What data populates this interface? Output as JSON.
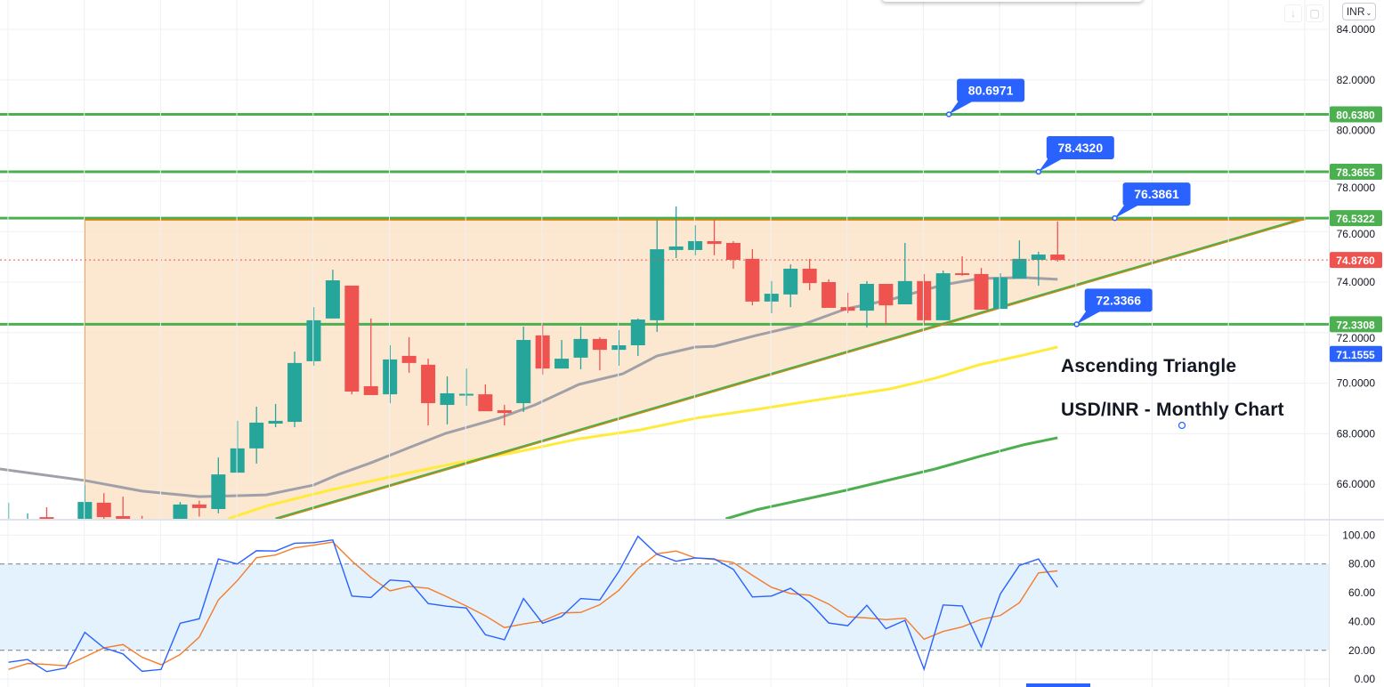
{
  "toolbar": {
    "currency_label": "INR",
    "icons": [
      "download-arrow-icon",
      "fullscreen-icon",
      "chevron-down-icon"
    ]
  },
  "annotations": {
    "title": "Ascending Triangle",
    "subtitle": "USD/INR - Monthly Chart"
  },
  "colors": {
    "up": "#26a69a",
    "down": "#ef5350",
    "level_line": "#4caf50",
    "triangle_fill": "#fce3c8",
    "triangle_edge": "#f57c00",
    "ma_gray": "#a0a0a8",
    "ma_yellow": "#ffeb3b",
    "ma_green": "#4caf50",
    "callout": "#2962ff",
    "rsi": "#2962ff",
    "rsi_signal": "#f57c2a",
    "rsi_band": "#e3f2fd"
  },
  "chart_data": [
    {
      "type": "candlestick",
      "ylim": [
        64.63,
        84.5
      ],
      "grid": true,
      "y_ticks": [
        "84.0000",
        "82.0000",
        "80.0000",
        "78.0000",
        "76.0000",
        "74.0000",
        "72.0000",
        "70.0000",
        "68.0000",
        "66.0000"
      ],
      "candles_ohlc": [
        [
          64.2,
          65.27,
          63.9,
          64.5
        ],
        [
          64.2,
          64.85,
          63.9,
          64.4
        ],
        [
          64.7,
          65.09,
          64.3,
          64.64
        ],
        [
          64.3,
          64.6,
          63.8,
          64.5
        ],
        [
          64.3,
          65.97,
          64.0,
          65.3
        ],
        [
          65.27,
          65.65,
          64.5,
          64.7
        ],
        [
          64.74,
          65.51,
          64.2,
          64.4
        ],
        [
          64.4,
          64.75,
          63.9,
          64.2
        ],
        [
          64.0,
          64.6,
          63.8,
          64.5
        ],
        [
          64.5,
          65.3,
          64.2,
          65.2
        ],
        [
          65.2,
          65.35,
          64.72,
          65.06
        ],
        [
          65.02,
          67.06,
          64.85,
          66.39
        ],
        [
          66.46,
          68.51,
          66.46,
          67.42
        ],
        [
          67.42,
          69.07,
          66.82,
          68.44
        ],
        [
          68.4,
          69.18,
          68.26,
          68.51
        ],
        [
          68.47,
          71.25,
          68.26,
          70.8
        ],
        [
          70.87,
          73.01,
          70.69,
          72.49
        ],
        [
          72.56,
          74.49,
          72.56,
          74.07
        ],
        [
          73.86,
          73.86,
          69.56,
          69.67
        ],
        [
          69.88,
          72.56,
          69.53,
          69.53
        ],
        [
          69.56,
          71.5,
          69.21,
          70.94
        ],
        [
          71.08,
          71.82,
          70.41,
          70.8
        ],
        [
          70.73,
          70.97,
          68.33,
          69.21
        ],
        [
          69.14,
          70.27,
          68.37,
          69.6
        ],
        [
          69.56,
          70.58,
          69.11,
          69.58
        ],
        [
          69.56,
          69.95,
          68.89,
          68.89
        ],
        [
          68.93,
          69.14,
          68.33,
          68.82
        ],
        [
          69.21,
          72.24,
          68.86,
          71.71
        ],
        [
          71.89,
          72.38,
          70.34,
          70.58
        ],
        [
          70.58,
          71.71,
          70.58,
          70.97
        ],
        [
          71.01,
          72.24,
          70.55,
          71.75
        ],
        [
          71.75,
          71.82,
          70.51,
          71.32
        ],
        [
          71.32,
          72.1,
          70.69,
          71.5
        ],
        [
          71.5,
          72.56,
          71.08,
          72.52
        ],
        [
          72.49,
          76.46,
          72.03,
          75.3
        ],
        [
          75.27,
          76.99,
          74.95,
          75.41
        ],
        [
          75.27,
          76.25,
          75.06,
          75.62
        ],
        [
          75.62,
          76.46,
          75.06,
          75.51
        ],
        [
          75.55,
          75.62,
          74.53,
          74.88
        ],
        [
          74.92,
          75.3,
          73.08,
          73.23
        ],
        [
          73.23,
          74.04,
          72.77,
          73.54
        ],
        [
          73.51,
          74.7,
          73.01,
          74.53
        ],
        [
          74.53,
          74.92,
          73.68,
          73.96
        ],
        [
          74.0,
          74.11,
          72.98,
          72.98
        ],
        [
          73.01,
          73.58,
          72.77,
          72.87
        ],
        [
          72.87,
          74.04,
          72.2,
          73.93
        ],
        [
          73.93,
          73.93,
          72.31,
          73.08
        ],
        [
          73.12,
          75.55,
          73.12,
          74.04
        ],
        [
          74.04,
          74.32,
          72.35,
          72.49
        ],
        [
          72.49,
          74.46,
          72.49,
          74.35
        ],
        [
          74.35,
          75.02,
          74.25,
          74.28
        ],
        [
          74.32,
          74.56,
          72.91,
          72.91
        ],
        [
          72.94,
          74.35,
          72.94,
          74.18
        ],
        [
          74.14,
          75.65,
          74.14,
          74.92
        ],
        [
          74.88,
          75.2,
          73.86,
          75.09
        ],
        [
          75.09,
          76.4,
          74.81,
          74.876
        ]
      ],
      "moving_averages": [
        {
          "color_key": "ma_gray",
          "points": [
            [
              -0.5,
              66.61
            ],
            [
              4,
              66.15
            ],
            [
              7,
              65.73
            ],
            [
              10,
              65.51
            ],
            [
              13.5,
              65.58
            ],
            [
              16,
              65.97
            ],
            [
              17.3,
              66.39
            ],
            [
              19,
              66.85
            ],
            [
              21,
              67.45
            ],
            [
              22.9,
              68.01
            ],
            [
              25.7,
              68.61
            ],
            [
              27.6,
              69.14
            ],
            [
              29.9,
              69.95
            ],
            [
              32.2,
              70.37
            ],
            [
              34,
              71.08
            ],
            [
              36,
              71.43
            ],
            [
              37,
              71.46
            ],
            [
              39.2,
              71.89
            ],
            [
              41.6,
              72.31
            ],
            [
              43.9,
              72.94
            ],
            [
              46.2,
              73.3
            ],
            [
              49,
              73.89
            ],
            [
              50.9,
              74.14
            ],
            [
              53.2,
              74.18
            ],
            [
              55,
              74.11
            ]
          ]
        },
        {
          "color_key": "ma_yellow",
          "points": [
            [
              11.5,
              64.63
            ],
            [
              13.6,
              65.16
            ],
            [
              16.8,
              65.76
            ],
            [
              20.6,
              66.39
            ],
            [
              23.8,
              66.89
            ],
            [
              26.6,
              67.27
            ],
            [
              29.9,
              67.8
            ],
            [
              33.1,
              68.15
            ],
            [
              36,
              68.61
            ],
            [
              39.2,
              68.96
            ],
            [
              42.5,
              69.35
            ],
            [
              46.2,
              69.77
            ],
            [
              48.6,
              70.2
            ],
            [
              50.9,
              70.73
            ],
            [
              53.2,
              71.11
            ],
            [
              55,
              71.43
            ]
          ]
        },
        {
          "color_key": "ma_green",
          "points": [
            [
              37.6,
              64.63
            ],
            [
              39.2,
              64.99
            ],
            [
              43.9,
              65.76
            ],
            [
              48.6,
              66.61
            ],
            [
              50.9,
              67.1
            ],
            [
              53.2,
              67.56
            ],
            [
              55,
              67.84
            ]
          ]
        }
      ],
      "horizontal_levels": [
        {
          "value": 80.638,
          "label": "80.6380"
        },
        {
          "value": 78.3655,
          "label": "78.3655"
        },
        {
          "value": 76.5322,
          "label": "76.5322"
        },
        {
          "value": 72.3308,
          "label": "72.3308"
        }
      ],
      "callouts": [
        {
          "label": "80.6971",
          "anchor": [
            49.3,
            80.638
          ]
        },
        {
          "label": "78.4320",
          "anchor": [
            54.0,
            78.3655
          ]
        },
        {
          "label": "76.3861",
          "anchor": [
            58.0,
            76.5322
          ]
        },
        {
          "label": "72.3366",
          "anchor": [
            56.0,
            72.3308
          ]
        }
      ],
      "triangle": {
        "top": [
          [
            4,
            76.53
          ],
          [
            68,
            76.53
          ]
        ],
        "lower_trendline": [
          [
            14.0,
            64.63
          ],
          [
            68,
            76.53
          ]
        ]
      },
      "last_price": {
        "value": 74.876,
        "label": "74.8760"
      },
      "ma_price_label": {
        "value": 71.1555,
        "label": "71.1555"
      }
    },
    {
      "type": "line",
      "ylim": [
        0,
        100
      ],
      "y_ticks": [
        "100.00",
        "80.00",
        "60.00",
        "40.00",
        "20.00",
        "0.00"
      ],
      "band": [
        20,
        80
      ],
      "series": [
        {
          "color_key": "rsi",
          "values": [
            11.7,
            13.6,
            5.2,
            7.7,
            32.5,
            21.7,
            17.5,
            5.4,
            6.7,
            38.8,
            41.9,
            83.5,
            80.0,
            89.2,
            89.0,
            94.4,
            94.8,
            96.7,
            57.7,
            56.7,
            68.8,
            67.9,
            52.5,
            50.6,
            49.4,
            30.8,
            27.3,
            56.0,
            38.8,
            43.5,
            56.0,
            55.0,
            74.8,
            99.2,
            86.7,
            81.9,
            84.2,
            83.5,
            76.3,
            57.1,
            57.7,
            63.1,
            53.3,
            39.0,
            37.1,
            51.3,
            35.0,
            40.8,
            6.9,
            51.5,
            50.8,
            22.3,
            59.2,
            79.0,
            83.5,
            63.8
          ]
        },
        {
          "color_key": "rsi_signal",
          "values": [
            6.7,
            10.8,
            10.2,
            9.2,
            15.4,
            21.7,
            24.0,
            15.2,
            10.0,
            17.1,
            29.2,
            55.0,
            68.5,
            84.4,
            86.2,
            91.2,
            93.1,
            95.2,
            82.1,
            70.6,
            61.3,
            64.4,
            63.1,
            57.1,
            50.8,
            44.0,
            35.8,
            38.3,
            40.4,
            46.0,
            46.3,
            51.7,
            61.7,
            76.9,
            87.1,
            89.0,
            84.2,
            83.1,
            81.0,
            72.1,
            63.8,
            59.4,
            58.3,
            52.1,
            43.3,
            42.5,
            41.3,
            42.3,
            27.7,
            33.1,
            36.3,
            41.5,
            44.2,
            53.1,
            73.8,
            75.2
          ]
        }
      ]
    }
  ]
}
